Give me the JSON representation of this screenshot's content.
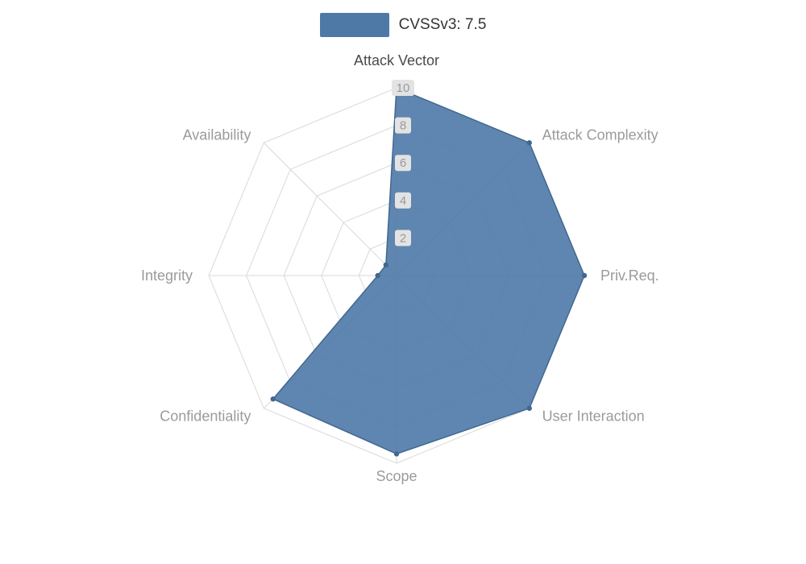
{
  "legend": {
    "label": "CVSSv3: 7.5",
    "swatch_color": "#4e79a7"
  },
  "chart_data": {
    "type": "radar",
    "title": "",
    "legend_position": "top",
    "grid": "polygon-web",
    "axes": [
      "Attack Vector",
      "Attack Complexity",
      "Priv.Req.",
      "User Interaction",
      "Scope",
      "Confidentiality",
      "Integrity",
      "Availability"
    ],
    "highlighted_axis": "Attack Vector",
    "scale": {
      "min": 0,
      "max": 10,
      "ticks": [
        2,
        4,
        6,
        8,
        10
      ]
    },
    "series": [
      {
        "name": "CVSSv3: 7.5",
        "values": [
          10,
          10,
          10,
          10,
          9.5,
          9.3,
          1,
          0.8
        ]
      }
    ]
  },
  "colors": {
    "series_fill": "#4e79a7",
    "series_fill_opacity": "0.9",
    "series_stroke": "#41688f",
    "grid_line": "#d9d9d9",
    "axis_label": "#9b9b9b",
    "axis_label_active": "#4a4a4a",
    "tick_label": "#999999",
    "tick_label_bg": "#e3e3e3",
    "legend_text": "#333333"
  }
}
